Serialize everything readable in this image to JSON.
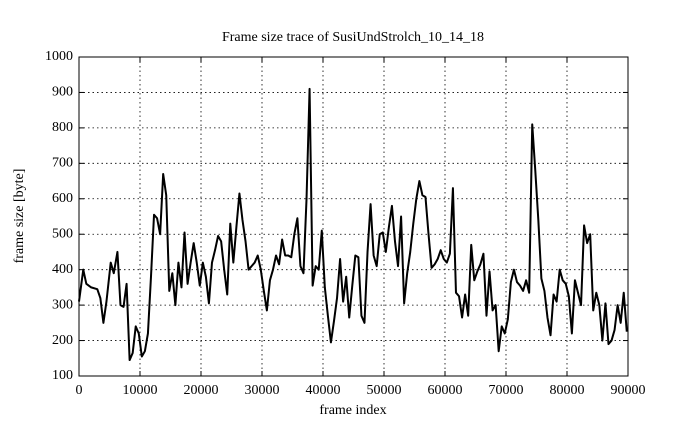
{
  "chart_data": {
    "type": "line",
    "title": "Frame size trace of SusiUndStrolch_10_14_18",
    "xlabel": "frame index",
    "ylabel": "frame size [byte]",
    "xlim": [
      0,
      90000
    ],
    "ylim": [
      100,
      1000
    ],
    "xticks": [
      0,
      10000,
      20000,
      30000,
      40000,
      50000,
      60000,
      70000,
      80000,
      90000
    ],
    "yticks": [
      100,
      200,
      300,
      400,
      500,
      600,
      700,
      800,
      900,
      1000
    ],
    "grid": true,
    "x": [
      0,
      700,
      1200,
      2000,
      3000,
      3500,
      4000,
      4500,
      5200,
      5700,
      6300,
      6800,
      7300,
      7800,
      8300,
      8800,
      9300,
      9800,
      10300,
      10800,
      11300,
      11800,
      12300,
      12800,
      13300,
      13800,
      14300,
      14800,
      15300,
      15800,
      16300,
      16800,
      17300,
      17800,
      18300,
      18800,
      19300,
      19800,
      20300,
      20800,
      21300,
      21800,
      22300,
      22800,
      23300,
      23800,
      24300,
      24800,
      25300,
      25800,
      26300,
      26800,
      27300,
      27800,
      28300,
      28800,
      29300,
      29800,
      30300,
      30800,
      31300,
      31800,
      32300,
      32800,
      33300,
      33800,
      34300,
      34800,
      35300,
      35800,
      36300,
      36800,
      37300,
      37800,
      38300,
      38800,
      39300,
      39800,
      40300,
      40800,
      41300,
      41800,
      42300,
      42800,
      43300,
      43800,
      44300,
      44800,
      45300,
      45800,
      46300,
      46800,
      47300,
      47800,
      48300,
      48800,
      49300,
      49800,
      50300,
      50800,
      51300,
      51800,
      52300,
      52800,
      53300,
      53800,
      54300,
      54800,
      55300,
      55800,
      56300,
      56800,
      57300,
      57800,
      58300,
      58800,
      59300,
      59800,
      60300,
      60800,
      61300,
      61800,
      62300,
      62800,
      63300,
      63800,
      64300,
      64800,
      65300,
      65800,
      66300,
      66800,
      67300,
      67800,
      68300,
      68800,
      69300,
      69800,
      70300,
      70800,
      71300,
      71800,
      72300,
      72800,
      73300,
      73800,
      74300,
      74800,
      75300,
      75800,
      76300,
      76800,
      77300,
      77800,
      78300,
      78800,
      79300,
      79800,
      80300,
      80800,
      81300,
      81800,
      82300,
      82800,
      83300,
      83800,
      84300,
      84800,
      85300,
      85800,
      86300,
      86800,
      87300,
      87800,
      88300,
      88800,
      89300,
      89800
    ],
    "series": [
      {
        "name": "frame size",
        "color": "#000000",
        "values": [
          310,
          400,
          360,
          350,
          345,
          320,
          250,
          310,
          420,
          390,
          450,
          300,
          295,
          360,
          145,
          165,
          240,
          220,
          155,
          170,
          220,
          380,
          555,
          545,
          500,
          670,
          610,
          340,
          390,
          300,
          420,
          350,
          505,
          360,
          420,
          475,
          420,
          355,
          420,
          380,
          305,
          420,
          455,
          495,
          480,
          400,
          330,
          530,
          420,
          520,
          615,
          540,
          480,
          400,
          410,
          420,
          440,
          400,
          340,
          285,
          370,
          400,
          440,
          415,
          485,
          440,
          440,
          435,
          500,
          545,
          410,
          390,
          600,
          910,
          355,
          410,
          400,
          510,
          350,
          270,
          195,
          255,
          320,
          430,
          310,
          380,
          265,
          355,
          440,
          435,
          270,
          250,
          450,
          585,
          440,
          410,
          500,
          505,
          450,
          520,
          580,
          480,
          410,
          550,
          305,
          390,
          450,
          530,
          600,
          650,
          610,
          605,
          500,
          405,
          415,
          430,
          455,
          430,
          420,
          445,
          630,
          335,
          325,
          265,
          330,
          270,
          470,
          370,
          395,
          415,
          445,
          270,
          395,
          285,
          300,
          170,
          240,
          220,
          260,
          365,
          400,
          365,
          355,
          340,
          370,
          335,
          810,
          680,
          540,
          375,
          340,
          265,
          215,
          330,
          310,
          400,
          370,
          360,
          325,
          220,
          370,
          335,
          300,
          525,
          475,
          500,
          285,
          335,
          300,
          200,
          305,
          190,
          200,
          230,
          300,
          250,
          335,
          225
        ]
      }
    ]
  }
}
